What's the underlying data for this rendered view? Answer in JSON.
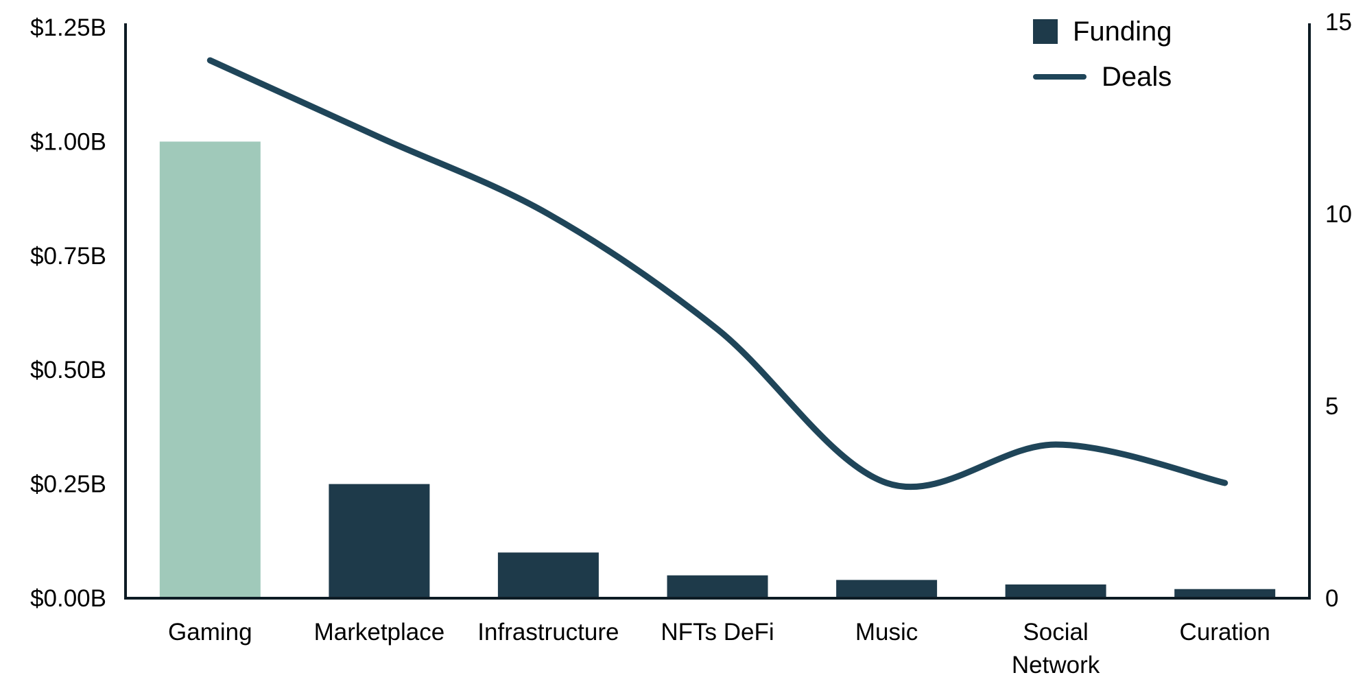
{
  "colors": {
    "background": "#ffffff",
    "funding_bar": "#1e3a4a",
    "funding_bar_highlight": "#a0c9ba",
    "deals_line": "#1f4559",
    "axis": "#0d1b24",
    "text": "#000000"
  },
  "chart_data": {
    "type": "combo",
    "subtypes": [
      "bar",
      "line"
    ],
    "categories": [
      "Gaming",
      "Marketplace",
      "Infrastructure",
      "NFTs DeFi",
      "Music",
      "Social Network",
      "Curation"
    ],
    "category_label_lines": [
      [
        "Gaming"
      ],
      [
        "Marketplace"
      ],
      [
        "Infrastructure"
      ],
      [
        "NFTs DeFi"
      ],
      [
        "Music"
      ],
      [
        "Social",
        "Network"
      ],
      [
        "Curation"
      ]
    ],
    "highlight_index": 0,
    "series": [
      {
        "name": "Funding",
        "type": "bar",
        "axis": "left",
        "unit": "USD billions",
        "values": [
          1.0,
          0.25,
          0.1,
          0.05,
          0.04,
          0.03,
          0.02
        ]
      },
      {
        "name": "Deals",
        "type": "line",
        "axis": "right",
        "unit": "count",
        "values": [
          14,
          12,
          10,
          7,
          3,
          4,
          3
        ]
      }
    ],
    "left_axis": {
      "min": 0,
      "max": 1.25,
      "ticks": [
        {
          "label": "$1.25B",
          "value": 1.25
        },
        {
          "label": "$1.00B",
          "value": 1.0
        },
        {
          "label": "$0.75B",
          "value": 0.75
        },
        {
          "label": "$0.50B",
          "value": 0.5
        },
        {
          "label": "$0.25B",
          "value": 0.25
        },
        {
          "label": "$0.00B",
          "value": 0.0
        }
      ]
    },
    "right_axis": {
      "min": 0,
      "max": 15,
      "ticks": [
        {
          "label": "15",
          "value": 15
        },
        {
          "label": "10",
          "value": 10
        },
        {
          "label": "5",
          "value": 5
        },
        {
          "label": "0",
          "value": 0
        }
      ]
    },
    "legend": [
      "Funding",
      "Deals"
    ],
    "grid": false,
    "legend_position": "top-right"
  }
}
